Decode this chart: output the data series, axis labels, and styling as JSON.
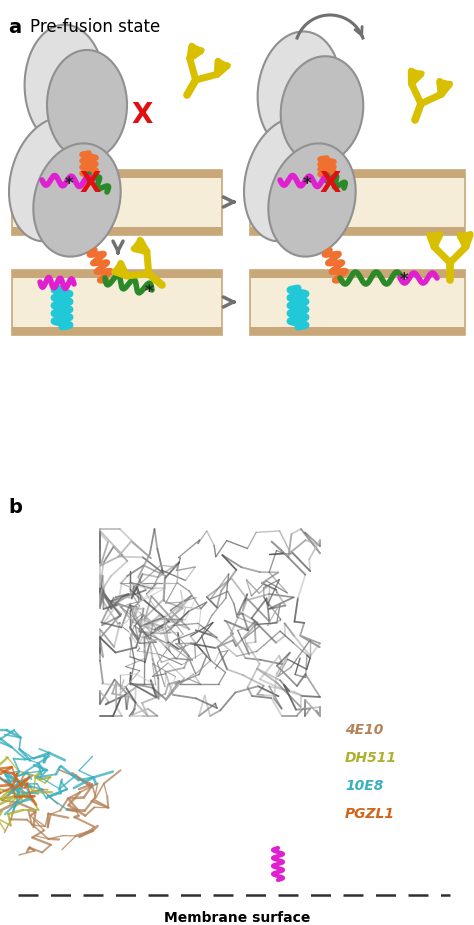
{
  "fig_width": 4.74,
  "fig_height": 9.25,
  "dpi": 100,
  "panel_a_label": "a",
  "panel_b_label": "b",
  "panel_a_title": "Pre-fusion state",
  "panel_b_footer": "Membrane surface",
  "legend_items": [
    {
      "label": "4E10",
      "color": "#b5835a"
    },
    {
      "label": "DH511",
      "color": "#b0b030"
    },
    {
      "label": "10E8",
      "color": "#3ab0c0"
    },
    {
      "label": "PGZL1",
      "color": "#d4631a"
    }
  ],
  "membrane_color": "#c8a878",
  "membrane_inner_color": "#f5edd8",
  "protein_color_main": "#c0c0c0",
  "protein_color_light": "#e0e0e0",
  "protein_edge_color": "#909090",
  "orange_loop_color": "#f07030",
  "green_linker_color": "#2a8a28",
  "magenta_linker_color": "#e020d0",
  "cyan_helix_color": "#20c8d8",
  "antibody_color": "#d8c000",
  "red_x_color": "#e01010",
  "arrow_color": "#707070",
  "asterisk_color": "#202020",
  "white": "#ffffff",
  "bg_color": "#ffffff"
}
